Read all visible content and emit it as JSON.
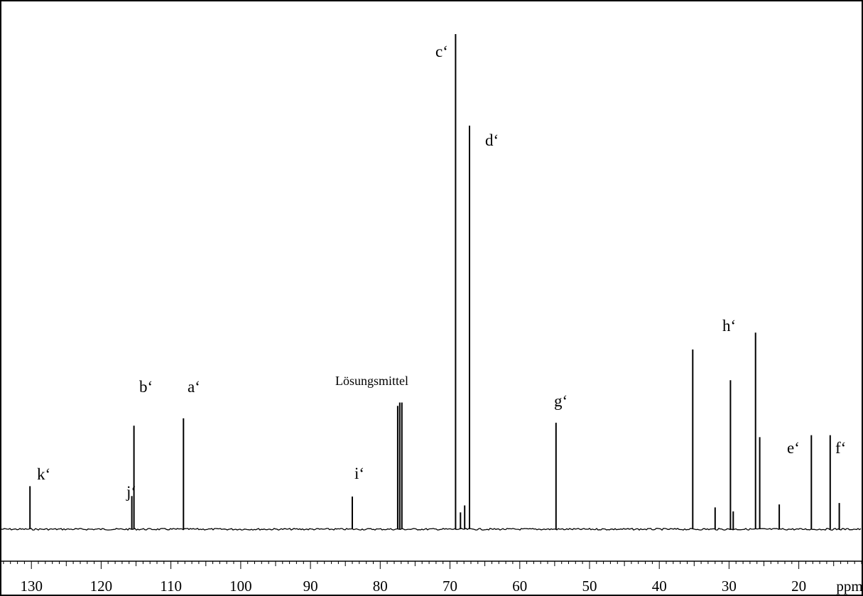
{
  "chart_data": {
    "type": "line",
    "title": "",
    "xlabel": "ppm",
    "ylabel": "",
    "xlim": [
      134.5,
      10.8
    ],
    "x_reversed": true,
    "grid": false,
    "x_tick_labels": [
      "130",
      "120",
      "110",
      "100",
      "90",
      "80",
      "70",
      "60",
      "50",
      "40",
      "30",
      "20"
    ],
    "x_tick_values": [
      130,
      120,
      110,
      100,
      90,
      80,
      70,
      60,
      50,
      40,
      30,
      20
    ],
    "unit_label": "ppm",
    "series": [
      {
        "peaks": [
          {
            "ppm": 130.2,
            "intensity": 0.087
          },
          {
            "ppm": 115.6,
            "intensity": 0.067
          },
          {
            "ppm": 115.3,
            "intensity": 0.209
          },
          {
            "ppm": 108.2,
            "intensity": 0.224
          },
          {
            "ppm": 84.0,
            "intensity": 0.066
          },
          {
            "ppm": 77.5,
            "intensity": 0.249
          },
          {
            "ppm": 77.2,
            "intensity": 0.256
          },
          {
            "ppm": 76.9,
            "intensity": 0.256
          },
          {
            "ppm": 69.2,
            "intensity": 1.0
          },
          {
            "ppm": 68.5,
            "intensity": 0.034
          },
          {
            "ppm": 67.9,
            "intensity": 0.048
          },
          {
            "ppm": 67.2,
            "intensity": 0.815
          },
          {
            "ppm": 54.8,
            "intensity": 0.215
          },
          {
            "ppm": 35.2,
            "intensity": 0.363
          },
          {
            "ppm": 32.0,
            "intensity": 0.044
          },
          {
            "ppm": 29.8,
            "intensity": 0.301
          },
          {
            "ppm": 29.4,
            "intensity": 0.036
          },
          {
            "ppm": 26.2,
            "intensity": 0.397
          },
          {
            "ppm": 25.6,
            "intensity": 0.186
          },
          {
            "ppm": 22.8,
            "intensity": 0.05
          },
          {
            "ppm": 18.2,
            "intensity": 0.19
          },
          {
            "ppm": 15.5,
            "intensity": 0.19
          },
          {
            "ppm": 14.2,
            "intensity": 0.053
          }
        ]
      }
    ],
    "annotations": [
      {
        "text": "k‘",
        "ppm": 130.2
      },
      {
        "text": "j‘",
        "ppm": 116.3
      },
      {
        "text": "b‘",
        "ppm": 115.3
      },
      {
        "text": "a‘",
        "ppm": 108.2
      },
      {
        "text": "Lösungsmittel",
        "ppm": 77.2
      },
      {
        "text": "i‘",
        "ppm": 84.0
      },
      {
        "text": "c‘",
        "ppm": 70.5
      },
      {
        "text": "d‘",
        "ppm": 65.5
      },
      {
        "text": "g‘",
        "ppm": 54.8
      },
      {
        "text": "h‘",
        "ppm": 28.5
      },
      {
        "text": "e‘",
        "ppm": 19.6
      },
      {
        "text": "f‘",
        "ppm": 14.3
      }
    ]
  }
}
